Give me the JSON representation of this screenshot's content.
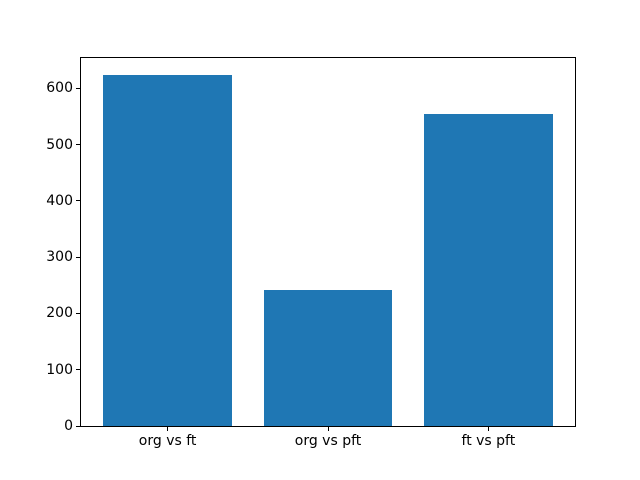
{
  "figure": {
    "background": "#ffffff"
  },
  "chart_data": {
    "type": "bar",
    "categories": [
      "org vs ft",
      "org vs pft",
      "ft vs pft"
    ],
    "values": [
      623,
      241,
      555
    ],
    "title": "",
    "xlabel": "",
    "ylabel": "",
    "ylim": [
      0,
      654
    ],
    "yticks": [
      0,
      100,
      200,
      300,
      400,
      500,
      600
    ],
    "bar_width_fraction": 0.8,
    "bar_color": "#1f77b4",
    "axis_color": "#000000",
    "tick_label_color": "#000000",
    "grid": false,
    "legend": "none"
  }
}
